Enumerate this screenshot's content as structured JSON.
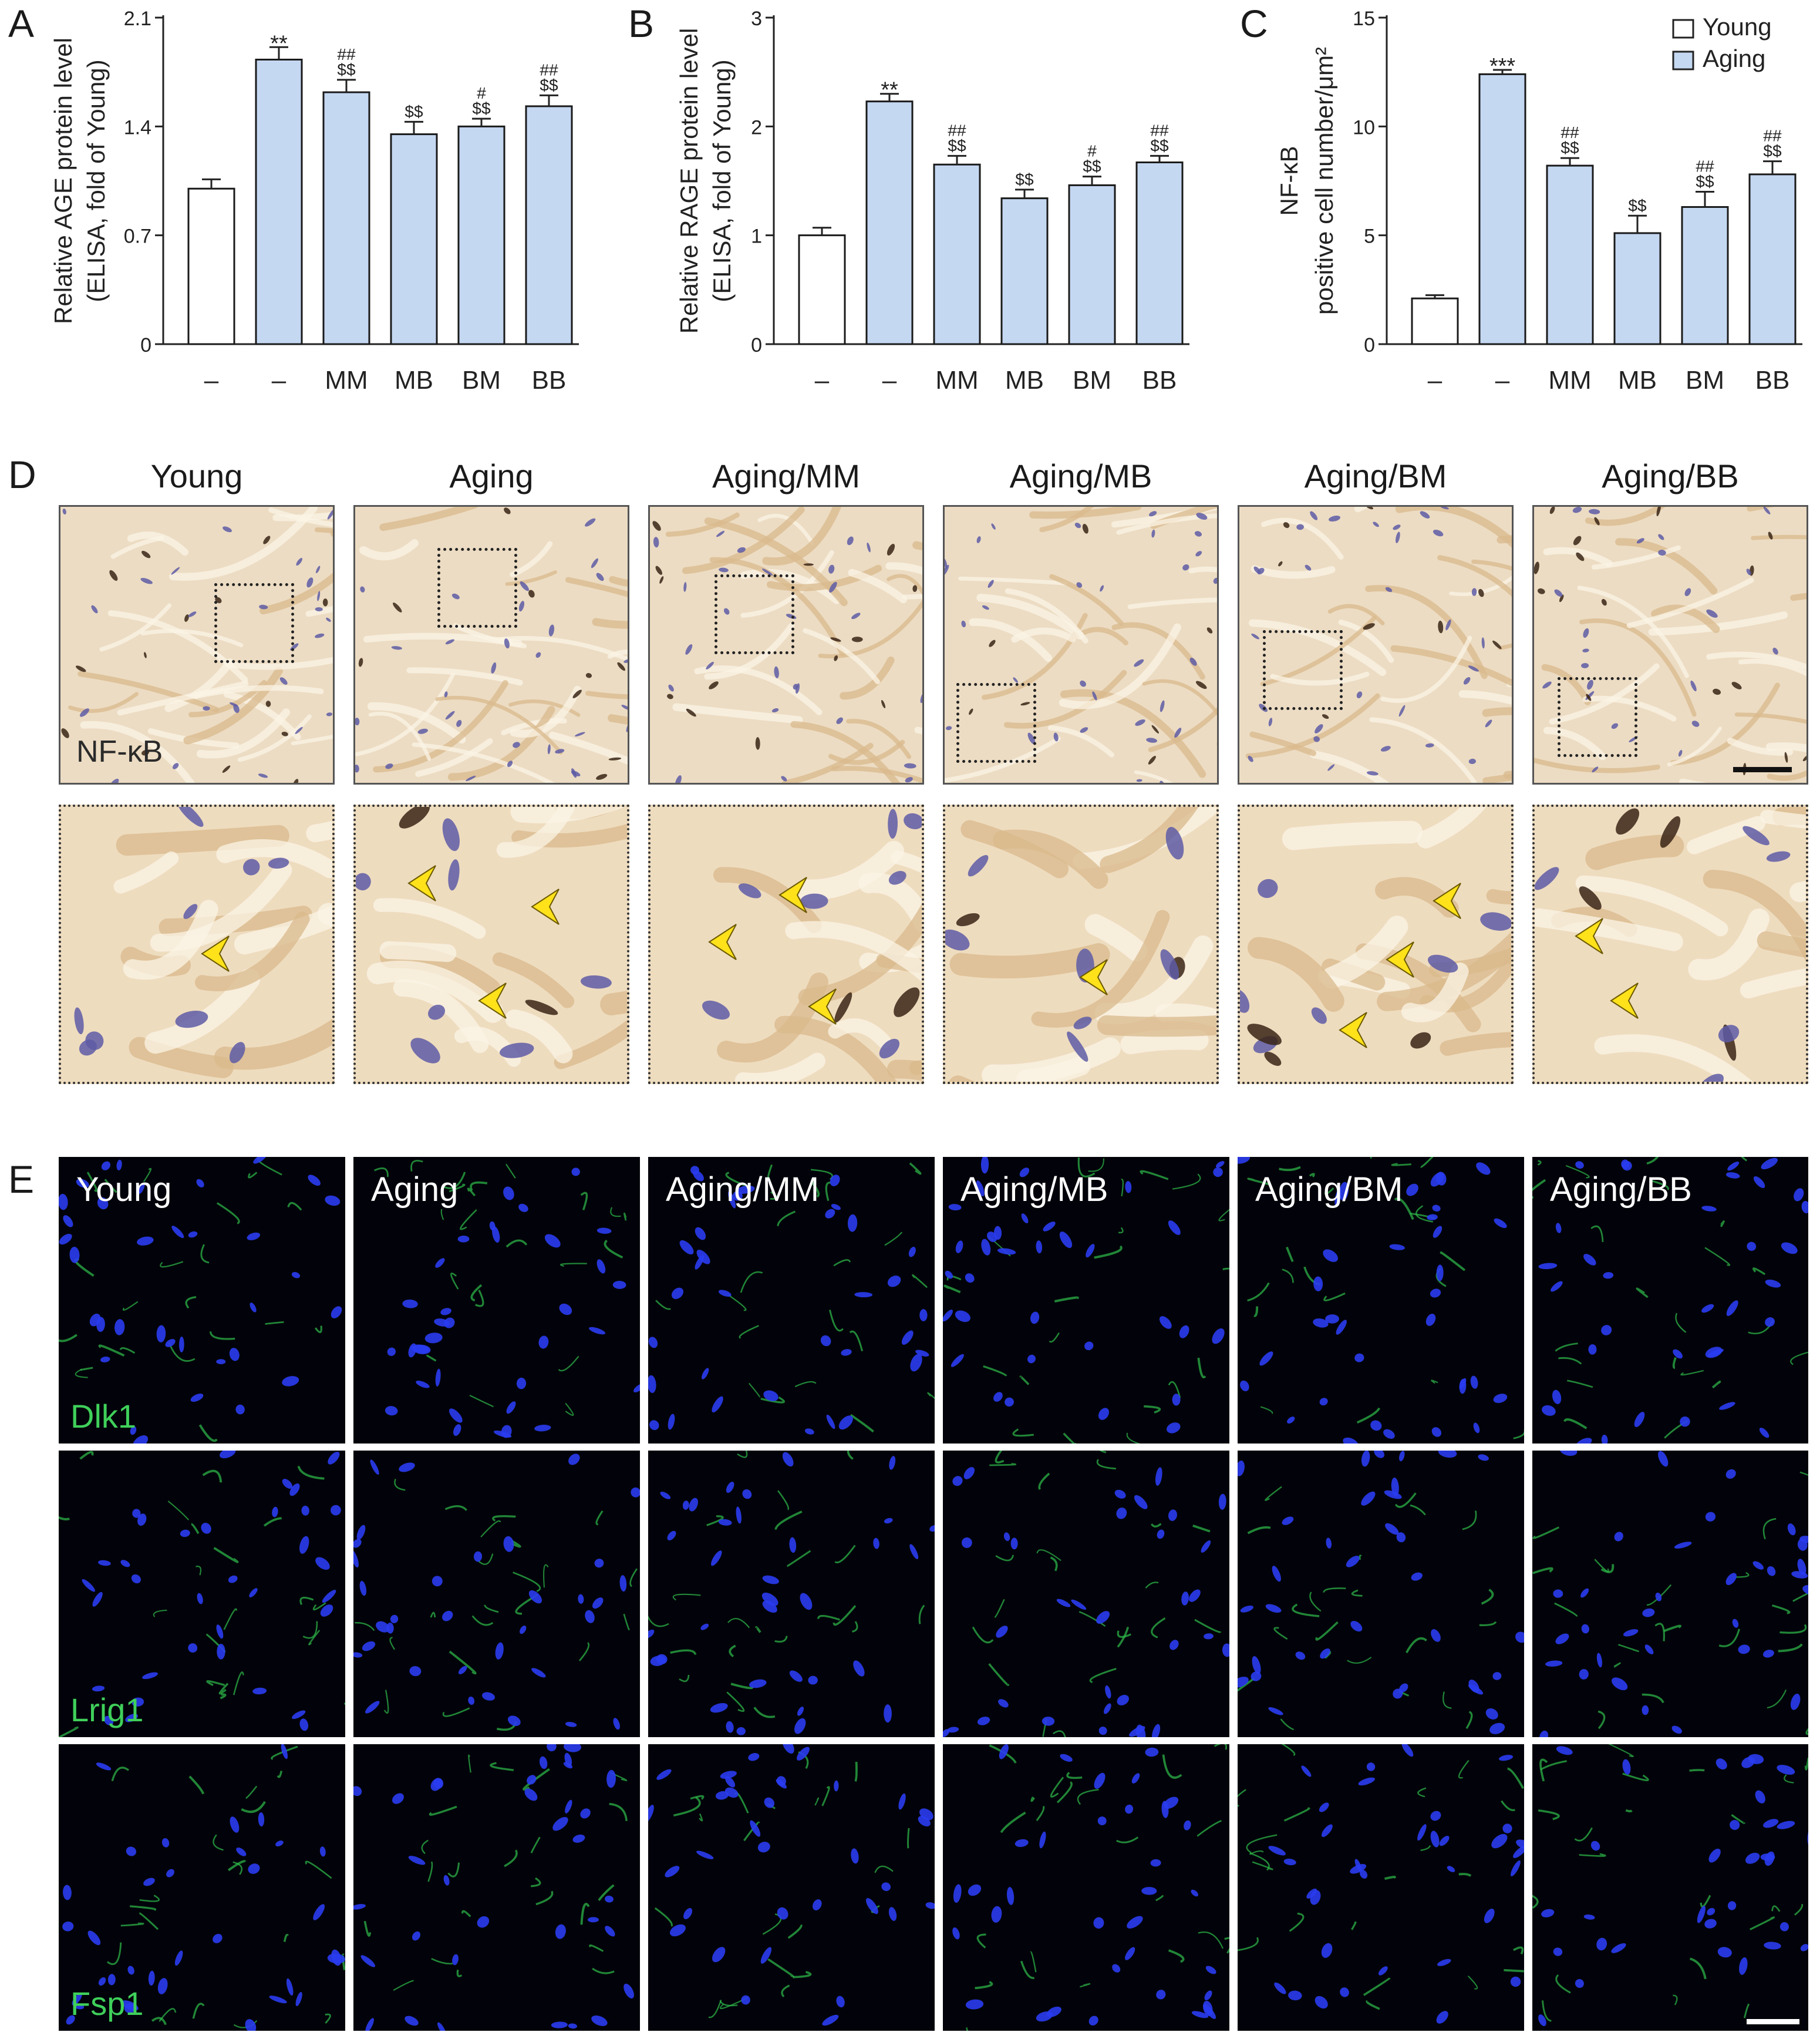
{
  "panel_letters": {
    "a": "A",
    "b": "B",
    "c": "C",
    "d": "D",
    "e": "E"
  },
  "chart_data": [
    {
      "type": "bar",
      "panel": "A",
      "categories": [
        "–",
        "–",
        "MM",
        "MB",
        "BM",
        "BB"
      ],
      "values": [
        1.0,
        1.83,
        1.62,
        1.35,
        1.4,
        1.53
      ],
      "errors": [
        0.06,
        0.08,
        0.08,
        0.08,
        0.05,
        0.07
      ],
      "groups": [
        "Young",
        "Aging",
        "Aging",
        "Aging",
        "Aging",
        "Aging"
      ],
      "annotations": [
        [],
        [
          "**"
        ],
        [
          "##",
          "$$"
        ],
        [
          "$$"
        ],
        [
          "#",
          "$$"
        ],
        [
          "##",
          "$$"
        ]
      ],
      "ylabel": "Relative AGE protein level",
      "ylabel2": "(ELISA, fold of Young)",
      "ylim": [
        0,
        2.1
      ],
      "yticks": [
        0,
        0.7,
        1.4,
        2.1
      ],
      "ytick_labels": [
        "0",
        "0.7",
        "1.4",
        "2.1"
      ]
    },
    {
      "type": "bar",
      "panel": "B",
      "categories": [
        "–",
        "–",
        "MM",
        "MB",
        "BM",
        "BB"
      ],
      "values": [
        1.0,
        2.23,
        1.65,
        1.34,
        1.46,
        1.67
      ],
      "errors": [
        0.07,
        0.07,
        0.08,
        0.08,
        0.08,
        0.06
      ],
      "groups": [
        "Young",
        "Aging",
        "Aging",
        "Aging",
        "Aging",
        "Aging"
      ],
      "annotations": [
        [],
        [
          "**"
        ],
        [
          "##",
          "$$"
        ],
        [
          "$$"
        ],
        [
          "#",
          "$$"
        ],
        [
          "##",
          "$$"
        ]
      ],
      "ylabel": "Relative RAGE protein level",
      "ylabel2": "(ELISA, fold of Young)",
      "ylim": [
        0,
        3
      ],
      "yticks": [
        0,
        1,
        2,
        3
      ],
      "ytick_labels": [
        "0",
        "1",
        "2",
        "3"
      ]
    },
    {
      "type": "bar",
      "panel": "C",
      "categories": [
        "–",
        "–",
        "MM",
        "MB",
        "BM",
        "BB"
      ],
      "values": [
        2.1,
        12.4,
        8.2,
        5.1,
        6.3,
        7.8
      ],
      "errors": [
        0.15,
        0.2,
        0.35,
        0.8,
        0.7,
        0.6
      ],
      "groups": [
        "Young",
        "Aging",
        "Aging",
        "Aging",
        "Aging",
        "Aging"
      ],
      "annotations": [
        [],
        [
          "***"
        ],
        [
          "##",
          "$$"
        ],
        [
          "$$"
        ],
        [
          "##",
          "$$"
        ],
        [
          "##",
          "$$"
        ]
      ],
      "ylabel": "NF-κB",
      "ylabel2": "positive cell number/μm²",
      "ylim": [
        0,
        15
      ],
      "yticks": [
        0,
        5,
        10,
        15
      ],
      "ytick_labels": [
        "0",
        "5",
        "10",
        "15"
      ],
      "legend": [
        {
          "name": "Young",
          "color": "#ffffff"
        },
        {
          "name": "Aging",
          "color": "#c5d8f2"
        }
      ],
      "legend_position": "top-right"
    }
  ],
  "colors": {
    "young_bar": "#ffffff",
    "aging_bar": "#c5d8f2",
    "bar_edge": "#1a1a1a",
    "arrowhead": "#ffe21a"
  },
  "ihc": {
    "columns": [
      "Young",
      "Aging",
      "Aging/MM",
      "Aging/MB",
      "Aging/BM",
      "Aging/BB"
    ],
    "stain_label": "NF-κB"
  },
  "if_panel": {
    "columns": [
      "Young",
      "Aging",
      "Aging/MM",
      "Aging/MB",
      "Aging/BM",
      "Aging/BB"
    ],
    "markers": [
      "Dlk1",
      "Lrig1",
      "Fsp1"
    ]
  }
}
